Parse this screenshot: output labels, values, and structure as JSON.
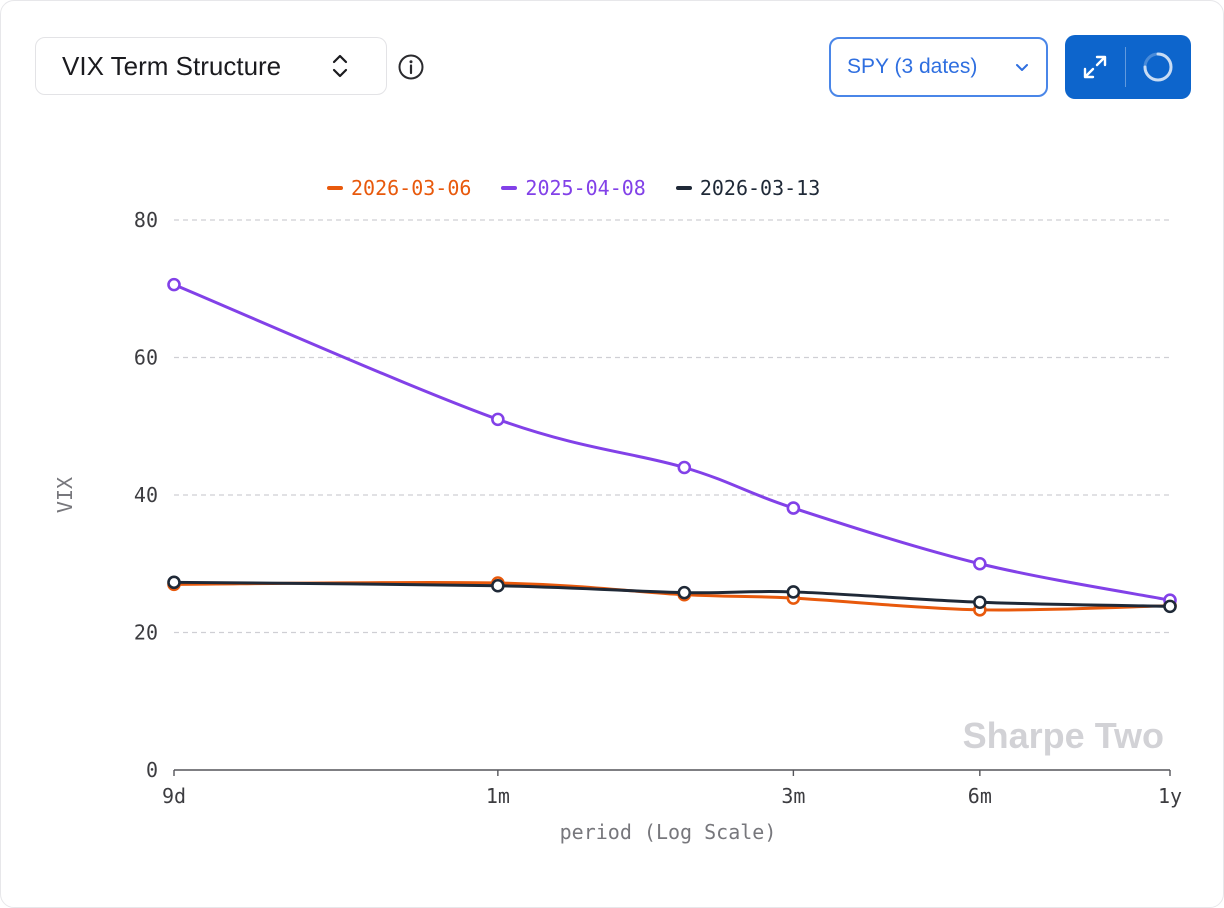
{
  "header": {
    "selector_label": "VIX Term Structure",
    "ticker_label": "SPY (3 dates)"
  },
  "colors": {
    "accent": "#0d65cc",
    "series": [
      "#e8590c",
      "#8241e8",
      "#1f2937"
    ]
  },
  "icons": {
    "selector": "updown-chevron-icon",
    "info": "info-icon",
    "ticker": "chevron-down-icon",
    "expand": "expand-icon",
    "refresh": "loading-spinner-icon"
  },
  "chart_data": {
    "type": "line",
    "title": "VIX Term Structure",
    "xlabel": "period (Log Scale)",
    "ylabel": "VIX",
    "x_scale": "log",
    "x_unit": "days",
    "x": [
      9,
      30,
      60,
      90,
      180,
      365
    ],
    "xticks": [
      {
        "label": "9d",
        "days": 9
      },
      {
        "label": "1m",
        "days": 30
      },
      {
        "label": "3m",
        "days": 90
      },
      {
        "label": "6m",
        "days": 180
      },
      {
        "label": "1y",
        "days": 365
      }
    ],
    "yticks": [
      0,
      20,
      40,
      60,
      80
    ],
    "ylim": [
      0,
      80
    ],
    "grid": true,
    "legend_position": "top",
    "watermark": "Sharpe Two",
    "series": [
      {
        "name": "2026-03-06",
        "color": "#e8590c",
        "values": [
          27.0,
          27.2,
          25.5,
          25.0,
          23.3,
          23.9
        ]
      },
      {
        "name": "2025-04-08",
        "color": "#8241e8",
        "values": [
          70.6,
          51.0,
          44.0,
          38.1,
          30.0,
          24.7
        ]
      },
      {
        "name": "2026-03-13",
        "color": "#1f2937",
        "values": [
          27.3,
          26.8,
          25.8,
          25.9,
          24.4,
          23.8
        ]
      }
    ]
  }
}
